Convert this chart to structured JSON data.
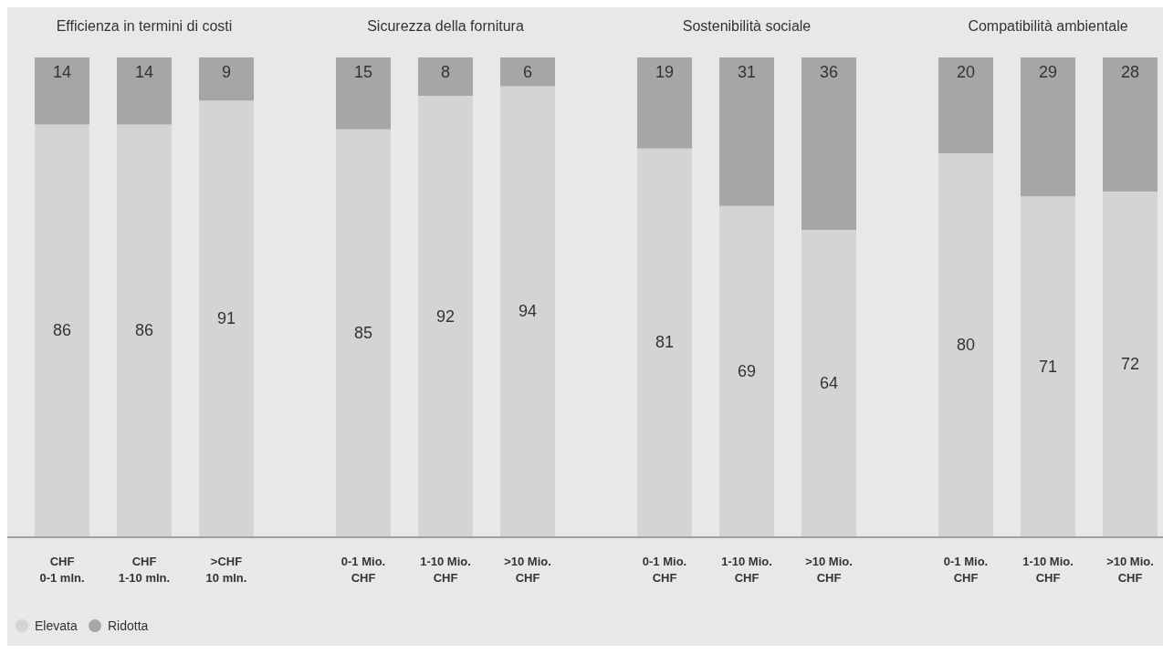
{
  "chart_data": [
    {
      "type": "bar",
      "title": "Efficienza in termini di costi",
      "categories": [
        "CHF\n0-1 mln.",
        "CHF\n1-10 mln.",
        ">CHF\n10 mln."
      ],
      "stacked": true,
      "data_labels": true,
      "legend": "bottom left",
      "series": [
        {
          "name": "Elevata",
          "color": "#d4d4d4",
          "values": [
            86,
            86,
            91
          ]
        },
        {
          "name": "Ridotta",
          "color": "#a6a6a6",
          "values": [
            14,
            14,
            9
          ]
        }
      ]
    },
    {
      "type": "bar",
      "title": "Sicurezza della fornitura",
      "categories": [
        "0-1 Mio.\nCHF",
        "1-10 Mio.\nCHF",
        ">10 Mio.\nCHF"
      ],
      "stacked": true,
      "data_labels": true,
      "series": [
        {
          "color": "#d4d4d4",
          "values": [
            85,
            92,
            94
          ]
        },
        {
          "color": "#a6a6a6",
          "values": [
            15,
            8,
            6
          ]
        }
      ]
    },
    {
      "type": "bar",
      "title": "Sostenibilità sociale",
      "categories": [
        "0-1 Mio.\nCHF",
        "1-10 Mio.\nCHF",
        ">10 Mio.\nCHF"
      ],
      "stacked": true,
      "data_labels": true,
      "series": [
        {
          "color": "#d4d4d4",
          "values": [
            81,
            69,
            64
          ]
        },
        {
          "color": "#a6a6a6",
          "values": [
            19,
            31,
            36
          ]
        }
      ]
    },
    {
      "type": "bar",
      "title": "Compatibilità ambientale",
      "categories": [
        "0-1 Mio.\nCHF",
        "1-10 Mio.\nCHF",
        ">10 Mio.\nCHF"
      ],
      "stacked": true,
      "data_labels": true,
      "series": [
        {
          "color": "#d4d4d4",
          "values": [
            80,
            71,
            72
          ]
        },
        {
          "color": "#a6a6a6",
          "values": [
            20,
            29,
            28
          ]
        }
      ]
    }
  ]
}
